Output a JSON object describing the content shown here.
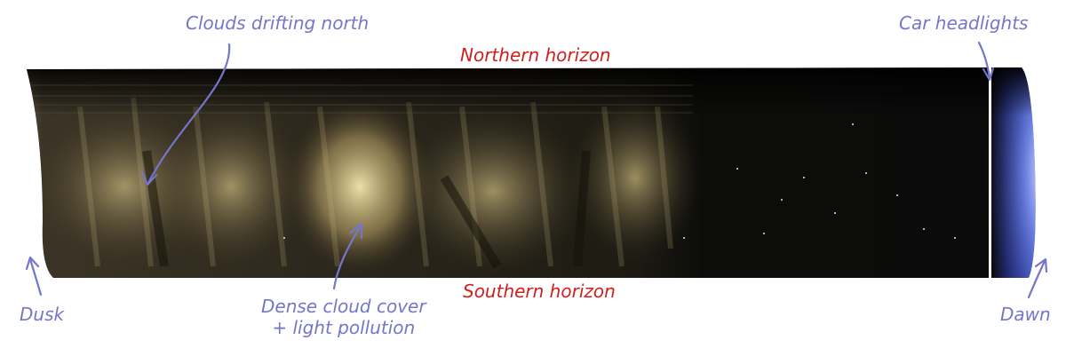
{
  "labels": {
    "northern": "Northern horizon",
    "southern": "Southern horizon",
    "clouds": "Clouds drifting north",
    "headlights": "Car headlights",
    "dusk": "Dusk",
    "dawn": "Dawn",
    "dense_line1": "Dense cloud cover",
    "dense_line2": "+ light pollution"
  },
  "colors": {
    "annotation": "#7477c9",
    "horizon_text": "#d21e1e",
    "sky_dark": "#0d0d0b",
    "cloud_glow": "#efe2a0",
    "dawn_blue": "#5a6fd8"
  },
  "icons": [
    "arrow-clouds",
    "arrow-headlights",
    "arrow-dusk",
    "arrow-dense",
    "arrow-dawn"
  ]
}
